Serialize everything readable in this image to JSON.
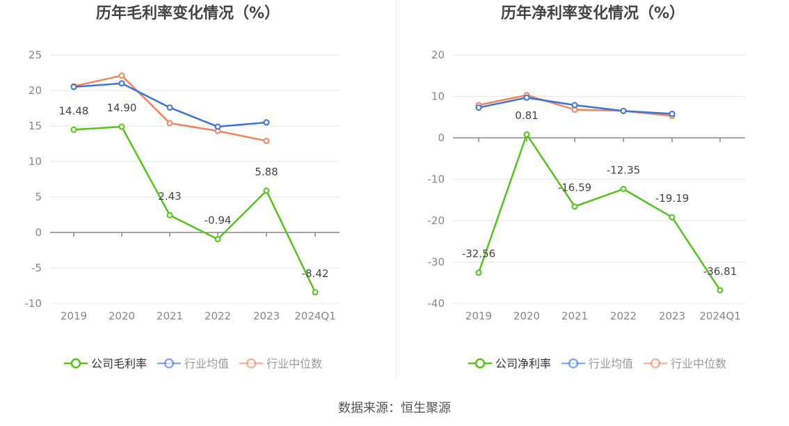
{
  "source": {
    "label": "数据来源：",
    "value": "恒生聚源"
  },
  "colors": {
    "company": "#52c41a",
    "industry_avg": "#3b73d9",
    "industry_median": "#f0845c"
  },
  "chart_data": [
    {
      "type": "line",
      "title": "历年毛利率变化情况（%）",
      "categories": [
        "2019",
        "2020",
        "2021",
        "2022",
        "2023",
        "2024Q1"
      ],
      "ylim": [
        -10,
        25
      ],
      "yticks": [
        25,
        20,
        15,
        10,
        5,
        0,
        -5,
        -10
      ],
      "grid": true,
      "legend_position": "bottom",
      "series": [
        {
          "name": "公司毛利率",
          "values": [
            14.48,
            14.9,
            2.43,
            -0.94,
            5.88,
            -8.42
          ],
          "labels": [
            "14.48",
            "14.90",
            "2.43",
            "-0.94",
            "5.88",
            "-8.42"
          ]
        },
        {
          "name": "行业均值",
          "values": [
            20.5,
            21.0,
            17.6,
            14.9,
            15.5,
            null
          ]
        },
        {
          "name": "行业中位数",
          "values": [
            20.6,
            22.1,
            15.4,
            14.3,
            12.9,
            null
          ]
        }
      ]
    },
    {
      "type": "line",
      "title": "历年净利率变化情况（%）",
      "categories": [
        "2019",
        "2020",
        "2021",
        "2022",
        "2023",
        "2024Q1"
      ],
      "ylim": [
        -40,
        20
      ],
      "yticks": [
        20,
        10,
        0,
        -10,
        -20,
        -30,
        -40
      ],
      "grid": true,
      "legend_position": "bottom",
      "series": [
        {
          "name": "公司净利率",
          "values": [
            -32.56,
            0.81,
            -16.59,
            -12.35,
            -19.19,
            -36.81
          ],
          "labels": [
            "-32.56",
            "0.81",
            "-16.59",
            "-12.35",
            "-19.19",
            "-36.81"
          ]
        },
        {
          "name": "行业均值",
          "values": [
            7.3,
            9.7,
            7.9,
            6.5,
            5.8,
            null
          ]
        },
        {
          "name": "行业中位数",
          "values": [
            7.9,
            10.3,
            6.8,
            6.5,
            5.3,
            null
          ]
        }
      ]
    }
  ]
}
